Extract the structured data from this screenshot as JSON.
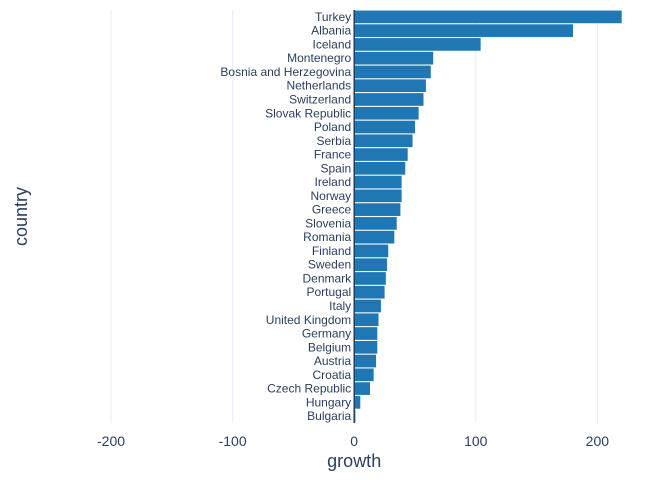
{
  "chart_data": {
    "type": "bar",
    "orientation": "horizontal",
    "title": "",
    "xlabel": "growth",
    "ylabel": "country",
    "xlim": [
      -265,
      240
    ],
    "xticks": [
      -200,
      -100,
      0,
      100,
      200
    ],
    "xtick_labels": [
      "-200",
      "-100",
      "0",
      "100",
      "200"
    ],
    "grid": true,
    "bar_color": "#1f77b4",
    "grid_color": "#e5ecf6",
    "zero_line_color": "#2a3f5f",
    "text_color": "#2a3f5f",
    "categories": [
      "Turkey",
      "Albania",
      "Iceland",
      "Montenegro",
      "Bosnia and Herzegovina",
      "Netherlands",
      "Switzerland",
      "Slovak Republic",
      "Poland",
      "Serbia",
      "France",
      "Spain",
      "Ireland",
      "Norway",
      "Greece",
      "Slovenia",
      "Romania",
      "Finland",
      "Sweden",
      "Denmark",
      "Portugal",
      "Italy",
      "United Kingdom",
      "Germany",
      "Belgium",
      "Austria",
      "Croatia",
      "Czech Republic",
      "Hungary",
      "Bulgaria"
    ],
    "values": [
      220,
      180,
      104,
      65,
      63,
      59,
      57,
      53,
      50,
      48,
      44,
      42,
      39,
      39,
      38,
      35,
      33,
      28,
      27,
      26,
      25,
      22,
      20,
      19,
      19,
      18,
      16,
      13,
      5,
      1
    ]
  }
}
